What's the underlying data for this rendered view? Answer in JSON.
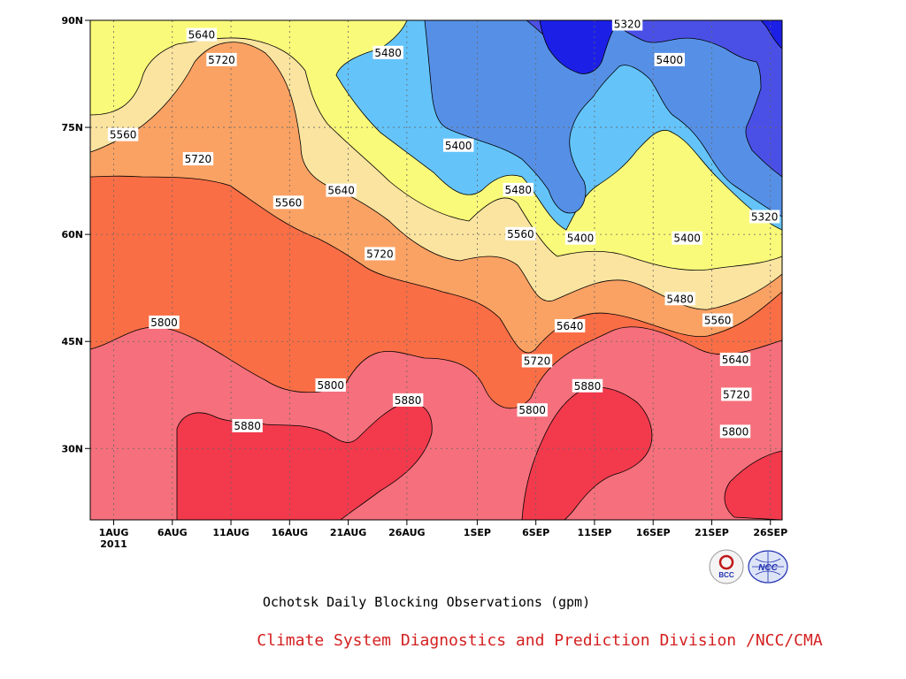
{
  "chart_data": {
    "type": "heatmap",
    "title": "Ochotsk Daily Blocking Observations (gpm)",
    "credit": "Climate System Diagnostics and Prediction Division /NCC/CMA",
    "x_ticks": [
      {
        "day": 0,
        "label": "1AUG",
        "sub": "2011"
      },
      {
        "day": 5,
        "label": "6AUG"
      },
      {
        "day": 10,
        "label": "11AUG"
      },
      {
        "day": 15,
        "label": "16AUG"
      },
      {
        "day": 20,
        "label": "21AUG"
      },
      {
        "day": 25,
        "label": "26AUG"
      },
      {
        "day": 31,
        "label": "1SEP"
      },
      {
        "day": 36,
        "label": "6SEP"
      },
      {
        "day": 41,
        "label": "11SEP"
      },
      {
        "day": 46,
        "label": "16SEP"
      },
      {
        "day": 51,
        "label": "21SEP"
      },
      {
        "day": 56,
        "label": "26SEP"
      }
    ],
    "y_ticks": [
      {
        "lat": 30,
        "label": "30N"
      },
      {
        "lat": 45,
        "label": "45N"
      },
      {
        "lat": 60,
        "label": "60N"
      },
      {
        "lat": 75,
        "label": "75N"
      },
      {
        "lat": 90,
        "label": "90N"
      }
    ],
    "xlim": [
      -2,
      57
    ],
    "ylim": [
      20,
      90
    ],
    "contour_levels": [
      5320,
      5400,
      5480,
      5560,
      5640,
      5720,
      5800,
      5880
    ],
    "fill_colors": [
      "#1c20e6",
      "#4a50e6",
      "#5690e6",
      "#64c4fa",
      "#fafa7a",
      "#fae4a0",
      "#faa264",
      "#fa6e46",
      "#f5707c",
      "#f23a4c"
    ],
    "grid": true,
    "contour_labels": [
      {
        "day": 7.5,
        "lat": 88,
        "value": "5640"
      },
      {
        "day": 9.2,
        "lat": 84.5,
        "value": "5720"
      },
      {
        "day": 0.8,
        "lat": 74,
        "value": "5560"
      },
      {
        "day": 7.2,
        "lat": 70.6,
        "value": "5720"
      },
      {
        "day": 23.4,
        "lat": 85.5,
        "value": "5480"
      },
      {
        "day": 14.9,
        "lat": 64.5,
        "value": "5560"
      },
      {
        "day": 19.4,
        "lat": 66.2,
        "value": "5640"
      },
      {
        "day": 22.7,
        "lat": 57.3,
        "value": "5720"
      },
      {
        "day": 29.4,
        "lat": 72.5,
        "value": "5400"
      },
      {
        "day": 34.5,
        "lat": 66.3,
        "value": "5480"
      },
      {
        "day": 34.7,
        "lat": 60.1,
        "value": "5560"
      },
      {
        "day": 39.8,
        "lat": 59.5,
        "value": "5400"
      },
      {
        "day": 43.8,
        "lat": 89.5,
        "value": "5320"
      },
      {
        "day": 47.4,
        "lat": 84.5,
        "value": "5400"
      },
      {
        "day": 55.5,
        "lat": 62.5,
        "value": "5320"
      },
      {
        "day": 48.9,
        "lat": 59.5,
        "value": "5400"
      },
      {
        "day": 48.3,
        "lat": 51,
        "value": "5480"
      },
      {
        "day": 51.5,
        "lat": 48,
        "value": "5560"
      },
      {
        "day": 53,
        "lat": 42.5,
        "value": "5640"
      },
      {
        "day": 53.1,
        "lat": 37.6,
        "value": "5720"
      },
      {
        "day": 53,
        "lat": 32.4,
        "value": "5800"
      },
      {
        "day": 4.3,
        "lat": 47.7,
        "value": "5800"
      },
      {
        "day": 38.9,
        "lat": 47.2,
        "value": "5640"
      },
      {
        "day": 36.1,
        "lat": 42.3,
        "value": "5720"
      },
      {
        "day": 18.5,
        "lat": 38.9,
        "value": "5800"
      },
      {
        "day": 25.1,
        "lat": 36.8,
        "value": "5880"
      },
      {
        "day": 11.4,
        "lat": 33.2,
        "value": "5880"
      },
      {
        "day": 35.7,
        "lat": 35.4,
        "value": "5800"
      },
      {
        "day": 40.4,
        "lat": 38.8,
        "value": "5880"
      }
    ]
  },
  "logos": [
    {
      "name": "BCC",
      "text": "BCC",
      "color": "#c01818"
    },
    {
      "name": "NCC",
      "text": "NCC",
      "color": "#2030b0"
    }
  ]
}
